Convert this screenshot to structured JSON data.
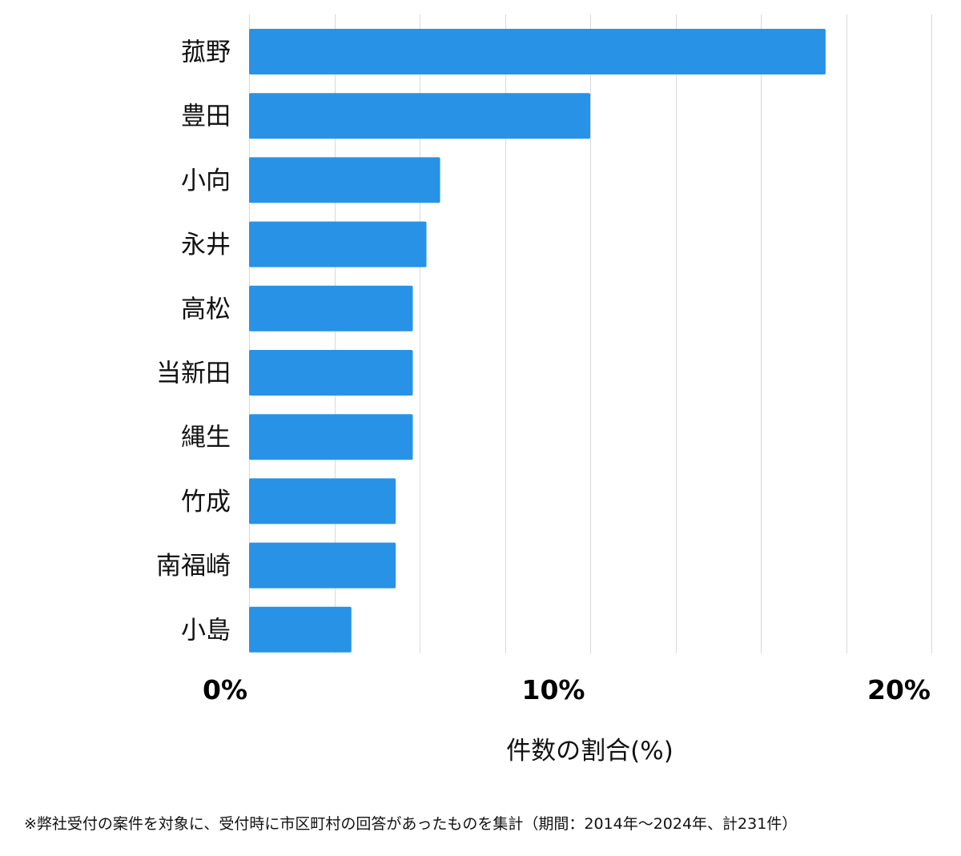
{
  "chart_data": {
    "type": "bar",
    "orientation": "horizontal",
    "categories": [
      "菰野",
      "豊田",
      "小向",
      "永井",
      "高松",
      "当新田",
      "縄生",
      "竹成",
      "南福崎",
      "小島"
    ],
    "values": [
      16.9,
      10.0,
      5.6,
      5.2,
      4.8,
      4.8,
      4.8,
      4.3,
      4.3,
      3.0
    ],
    "xlim": [
      0,
      20
    ],
    "x_ticks": [
      0,
      10,
      20
    ],
    "x_tick_labels": [
      "0%",
      "10%",
      "20%"
    ],
    "xlabel": "件数の割合(%)",
    "grid": true,
    "bar_color": "#2893e6",
    "grid_color": "#d9d9d9"
  },
  "footnote": "※弊社受付の案件を対象に、受付時に市区町村の回答があったものを集計（期間：2014年～2024年、計231件）"
}
